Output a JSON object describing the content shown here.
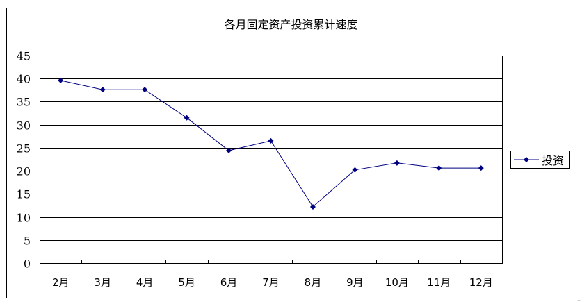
{
  "chart_data": {
    "type": "line",
    "title": "各月固定资产投资累计速度",
    "xlabel": "",
    "ylabel": "",
    "categories": [
      "2月",
      "3月",
      "4月",
      "5月",
      "6月",
      "7月",
      "8月",
      "9月",
      "10月",
      "11月",
      "12月"
    ],
    "series": [
      {
        "name": "投资",
        "color": "#000080",
        "marker": "diamond",
        "values": [
          39.6,
          37.6,
          37.6,
          31.5,
          24.4,
          26.5,
          12.2,
          20.2,
          21.7,
          20.6,
          20.6
        ]
      }
    ],
    "ylim": [
      0,
      45
    ],
    "yticks": [
      0,
      5,
      10,
      15,
      20,
      25,
      30,
      35,
      40,
      45
    ],
    "grid": true,
    "legend_position": "right"
  },
  "legend": {
    "label": "投资"
  }
}
